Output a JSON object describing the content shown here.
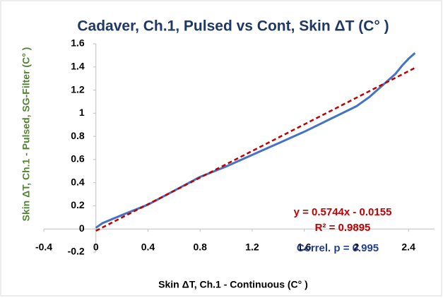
{
  "chart_data": {
    "type": "line",
    "title": "Cadaver, Ch.1, Pulsed vs Cont, Skin ΔT (C° )",
    "x_label": "Skin ΔT, Ch.1 - Continuous (C° )",
    "y_label": "Skin ΔT, Ch.1 - Pulsed, SG-Filter (C° )",
    "xlim": [
      -0.4,
      2.6
    ],
    "ylim": [
      -0.2,
      1.6
    ],
    "xticks": [
      -0.4,
      0,
      0.4,
      0.8,
      1.2,
      1.6,
      2,
      2.4
    ],
    "yticks": [
      -0.2,
      0,
      0.2,
      0.4,
      0.6,
      0.8,
      1,
      1.2,
      1.4,
      1.6
    ],
    "grid": false,
    "series": [
      {
        "color": "#4472c4",
        "dash": false,
        "x": [
          0,
          0.05,
          0.2,
          0.4,
          0.6,
          0.8,
          1.0,
          1.2,
          1.4,
          1.6,
          1.8,
          2.0,
          2.1,
          2.2,
          2.3,
          2.35,
          2.4,
          2.45
        ],
        "values": [
          0.01,
          0.05,
          0.12,
          0.21,
          0.33,
          0.45,
          0.54,
          0.64,
          0.74,
          0.84,
          0.95,
          1.06,
          1.14,
          1.24,
          1.34,
          1.41,
          1.47,
          1.52
        ]
      },
      {
        "color": "#c00000",
        "dash": true,
        "x": [
          0,
          2.45
        ],
        "values": [
          -0.016,
          1.392
        ]
      }
    ],
    "annotations": [
      {
        "text": "y = 0.5744x - 0.0155",
        "color": "#c00000"
      },
      {
        "text": "R² = 0.9895",
        "color": "#c00000"
      },
      {
        "text": "Correl. p = 0.995",
        "color": "#1f3f8f"
      }
    ]
  }
}
